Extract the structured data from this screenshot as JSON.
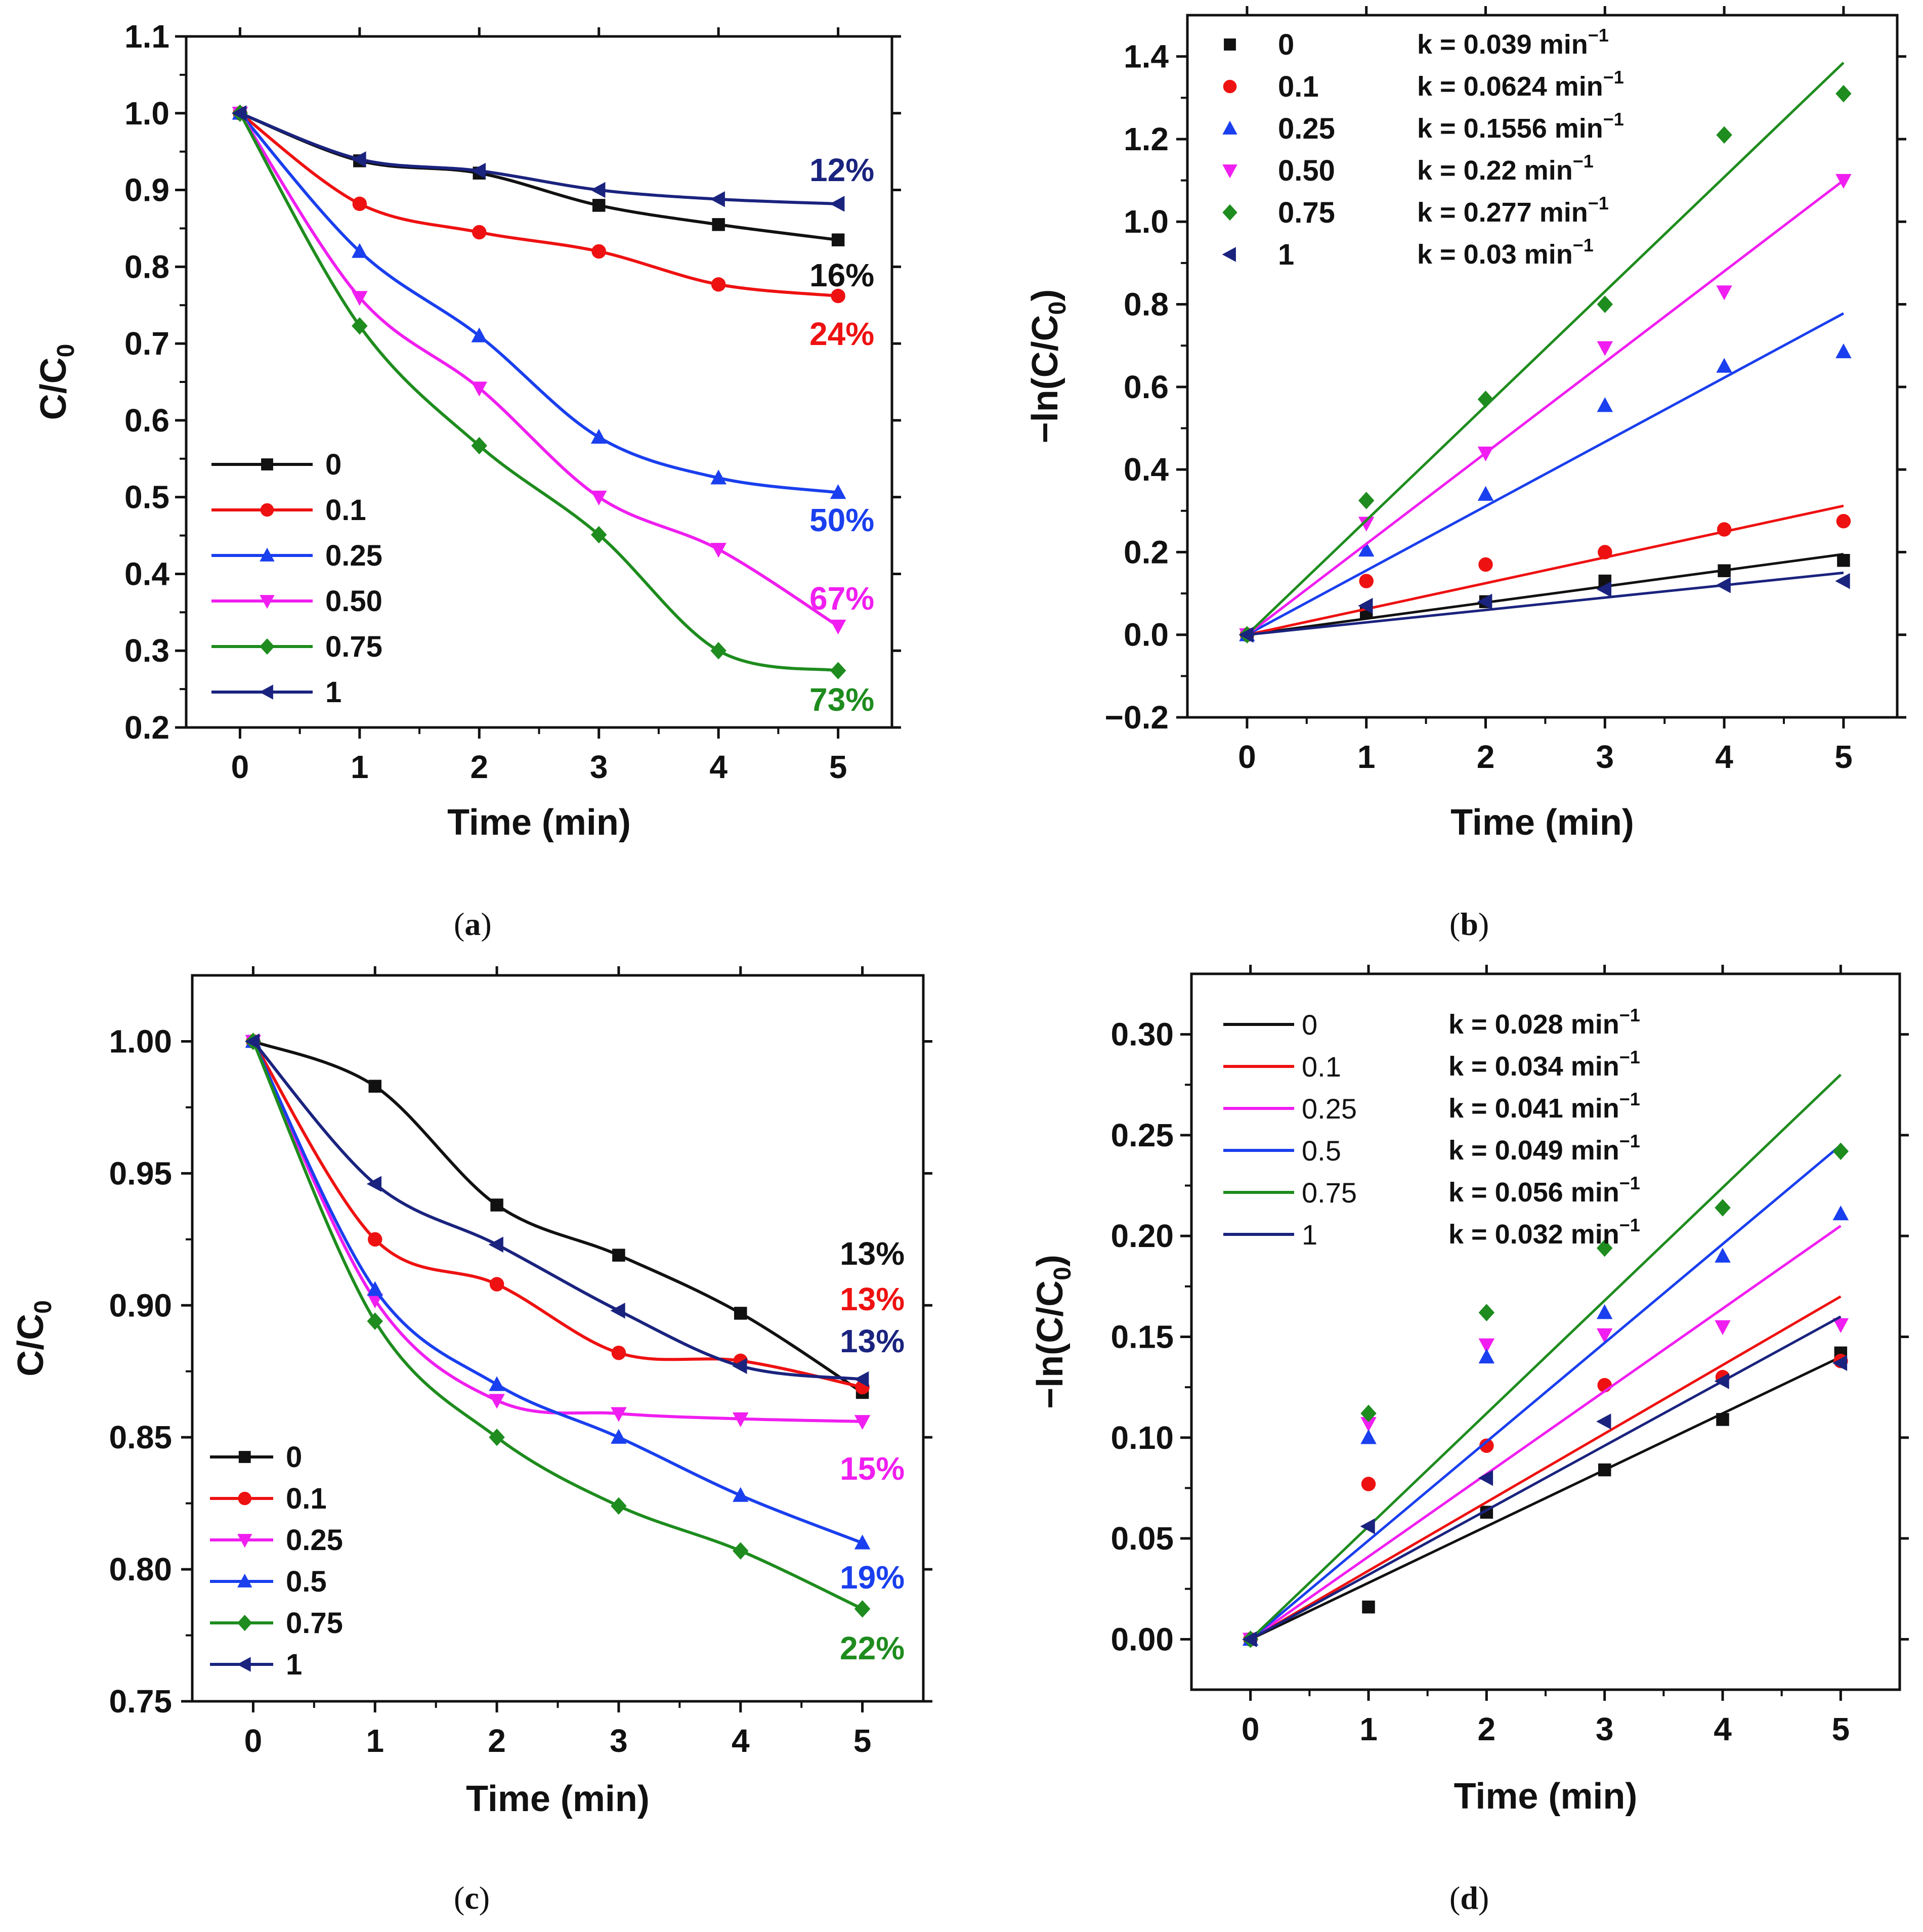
{
  "colors": {
    "s0": "#111111",
    "s01": "#ee1111",
    "s025": "#1a3fee",
    "s050": "#f01ef0",
    "s075": "#1e8c1e",
    "s1": "#1a237e"
  },
  "captions": {
    "a": "a",
    "b": "b",
    "c": "c",
    "d": "d"
  },
  "chart_data": [
    {
      "id": "a",
      "type": "line",
      "xlabel": "Time (min)",
      "ylabel_main": "C/C",
      "ylabel_sub": "0",
      "xlim": [
        -0.45,
        5.45
      ],
      "ylim": [
        0.2,
        1.1
      ],
      "xticks": [
        "0",
        "1",
        "2",
        "3",
        "4",
        "5"
      ],
      "yticks": [
        "0.2",
        "0.3",
        "0.4",
        "0.5",
        "0.6",
        "0.7",
        "0.8",
        "0.9",
        "1.0",
        "1.1"
      ],
      "x": [
        0,
        1,
        2,
        3,
        4,
        5
      ],
      "series": [
        {
          "name": "0",
          "color": "#111111",
          "marker": "square",
          "values": [
            1.0,
            0.938,
            0.922,
            0.88,
            0.855,
            0.835
          ]
        },
        {
          "name": "0.1",
          "color": "#ee1111",
          "marker": "circle",
          "values": [
            1.0,
            0.882,
            0.845,
            0.82,
            0.777,
            0.762
          ]
        },
        {
          "name": "0.25",
          "color": "#1a3fee",
          "marker": "triangle-up",
          "values": [
            1.0,
            0.82,
            0.71,
            0.578,
            0.525,
            0.506
          ]
        },
        {
          "name": "0.50",
          "color": "#f01ef0",
          "marker": "triangle-down",
          "values": [
            1.0,
            0.76,
            0.642,
            0.5,
            0.432,
            0.332
          ]
        },
        {
          "name": "0.75",
          "color": "#1e8c1e",
          "marker": "diamond",
          "values": [
            1.0,
            0.723,
            0.567,
            0.451,
            0.3,
            0.274
          ]
        },
        {
          "name": "1",
          "color": "#1a237e",
          "marker": "triangle-left",
          "values": [
            1.0,
            0.94,
            0.925,
            0.9,
            0.888,
            0.882
          ]
        }
      ],
      "legend": [
        "0",
        "0.1",
        "0.25",
        "0.50",
        "0.75",
        "1"
      ],
      "annotations": [
        {
          "text": "12%",
          "color": "#1a237e"
        },
        {
          "text": "16%",
          "color": "#111111"
        },
        {
          "text": "24%",
          "color": "#ee1111"
        },
        {
          "text": "50%",
          "color": "#1a3fee"
        },
        {
          "text": "67%",
          "color": "#f01ef0"
        },
        {
          "text": "73%",
          "color": "#1e8c1e"
        }
      ]
    },
    {
      "id": "b",
      "type": "scatter",
      "xlabel": "Time (min)",
      "ylabel_main": "−ln(C/C",
      "ylabel_sub": "0",
      "ylabel_end": ")",
      "xlim": [
        -0.5,
        5.45
      ],
      "ylim": [
        -0.2,
        1.5
      ],
      "xticks": [
        "0",
        "1",
        "2",
        "3",
        "4",
        "5"
      ],
      "yticks": [
        "−0.2",
        "0.0",
        "0.2",
        "0.4",
        "0.6",
        "0.8",
        "1.0",
        "1.2",
        "1.4"
      ],
      "x": [
        0,
        1,
        2,
        3,
        4,
        5
      ],
      "series": [
        {
          "name": "0",
          "color": "#111111",
          "marker": "square",
          "k": 0.039,
          "values": [
            0,
            0.055,
            0.08,
            0.13,
            0.155,
            0.18
          ]
        },
        {
          "name": "0.1",
          "color": "#ee1111",
          "marker": "circle",
          "k": 0.0624,
          "values": [
            0,
            0.13,
            0.17,
            0.2,
            0.255,
            0.275
          ]
        },
        {
          "name": "0.25",
          "color": "#1a3fee",
          "marker": "triangle-up",
          "k": 0.1556,
          "values": [
            0,
            0.205,
            0.34,
            0.555,
            0.65,
            0.685
          ]
        },
        {
          "name": "0.50",
          "color": "#f01ef0",
          "marker": "triangle-down",
          "k": 0.22,
          "values": [
            0,
            0.27,
            0.44,
            0.695,
            0.83,
            1.1
          ]
        },
        {
          "name": "0.75",
          "color": "#1e8c1e",
          "marker": "diamond",
          "k": 0.277,
          "values": [
            0,
            0.325,
            0.57,
            0.8,
            1.21,
            1.31
          ]
        },
        {
          "name": "1",
          "color": "#1a237e",
          "marker": "triangle-left",
          "k": 0.03,
          "values": [
            0,
            0.07,
            0.08,
            0.11,
            0.12,
            0.13
          ]
        }
      ],
      "legend": [
        {
          "label": "0",
          "k": "k = 0.039 min"
        },
        {
          "label": "0.1",
          "k": "k = 0.0624 min"
        },
        {
          "label": "0.25",
          "k": "k = 0.1556 min"
        },
        {
          "label": "0.50",
          "k": "k = 0.22 min"
        },
        {
          "label": "0.75",
          "k": "k = 0.277 min"
        },
        {
          "label": "1",
          "k": "k = 0.03 min"
        }
      ],
      "k_sup": "−1"
    },
    {
      "id": "c",
      "type": "line",
      "xlabel": "Time (min)",
      "ylabel_main": "C/C",
      "ylabel_sub": "0",
      "xlim": [
        -0.5,
        5.5
      ],
      "ylim": [
        0.75,
        1.025
      ],
      "xticks": [
        "0",
        "1",
        "2",
        "3",
        "4",
        "5"
      ],
      "yticks": [
        "0.75",
        "0.80",
        "0.85",
        "0.90",
        "0.95",
        "1.00"
      ],
      "x": [
        0,
        1,
        2,
        3,
        4,
        5
      ],
      "series": [
        {
          "name": "0",
          "color": "#111111",
          "marker": "square",
          "values": [
            1.0,
            0.983,
            0.938,
            0.919,
            0.897,
            0.867
          ]
        },
        {
          "name": "0.1",
          "color": "#ee1111",
          "marker": "circle",
          "values": [
            1.0,
            0.925,
            0.908,
            0.882,
            0.879,
            0.869
          ]
        },
        {
          "name": "0.25",
          "color": "#f01ef0",
          "marker": "triangle-down",
          "values": [
            1.0,
            0.902,
            0.864,
            0.859,
            0.857,
            0.856
          ]
        },
        {
          "name": "0.5",
          "color": "#1a3fee",
          "marker": "triangle-up",
          "values": [
            1.0,
            0.906,
            0.87,
            0.85,
            0.828,
            0.81
          ]
        },
        {
          "name": "0.75",
          "color": "#1e8c1e",
          "marker": "diamond",
          "values": [
            1.0,
            0.894,
            0.85,
            0.824,
            0.807,
            0.785
          ]
        },
        {
          "name": "1",
          "color": "#1a237e",
          "marker": "triangle-left",
          "values": [
            1.0,
            0.946,
            0.923,
            0.898,
            0.877,
            0.872
          ]
        }
      ],
      "legend": [
        "0",
        "0.1",
        "0.25",
        "0.5",
        "0.75",
        "1"
      ],
      "annotations": [
        {
          "text": "13%",
          "color": "#111111"
        },
        {
          "text": "13%",
          "color": "#ee1111"
        },
        {
          "text": "13%",
          "color": "#1a237e"
        },
        {
          "text": "15%",
          "color": "#f01ef0"
        },
        {
          "text": "19%",
          "color": "#1a3fee"
        },
        {
          "text": "22%",
          "color": "#1e8c1e"
        }
      ]
    },
    {
      "id": "d",
      "type": "scatter",
      "xlabel": "Time (min)",
      "ylabel_main": "−ln(C/C",
      "ylabel_sub": "0",
      "ylabel_end": ")",
      "xlim": [
        -0.5,
        5.5
      ],
      "ylim": [
        -0.025,
        0.33
      ],
      "xticks": [
        "0",
        "1",
        "2",
        "3",
        "4",
        "5"
      ],
      "yticks": [
        "0.00",
        "0.05",
        "0.10",
        "0.15",
        "0.20",
        "0.25",
        "0.30"
      ],
      "x": [
        0,
        1,
        2,
        3,
        4,
        5
      ],
      "series": [
        {
          "name": "0",
          "color": "#111111",
          "marker": "square",
          "k": 0.028,
          "values": [
            0,
            0.016,
            0.063,
            0.084,
            0.109,
            0.142
          ]
        },
        {
          "name": "0.1",
          "color": "#ee1111",
          "marker": "circle",
          "k": 0.034,
          "values": [
            0,
            0.077,
            0.096,
            0.126,
            0.13,
            0.138
          ]
        },
        {
          "name": "0.25",
          "color": "#f01ef0",
          "marker": "triangle-down",
          "k": 0.041,
          "values": [
            0,
            0.107,
            0.146,
            0.151,
            0.155,
            0.156
          ]
        },
        {
          "name": "0.5",
          "color": "#1a3fee",
          "marker": "triangle-up",
          "k": 0.049,
          "values": [
            0,
            0.1,
            0.14,
            0.162,
            0.19,
            0.211
          ]
        },
        {
          "name": "0.75",
          "color": "#1e8c1e",
          "marker": "diamond",
          "k": 0.056,
          "values": [
            0,
            0.112,
            0.162,
            0.194,
            0.214,
            0.242
          ]
        },
        {
          "name": "1",
          "color": "#1a237e",
          "marker": "triangle-left",
          "k": 0.032,
          "values": [
            0,
            0.056,
            0.08,
            0.108,
            0.128,
            0.137
          ]
        }
      ],
      "legend": [
        {
          "label": "0",
          "k": "k = 0.028 min"
        },
        {
          "label": "0.1",
          "k": "k = 0.034 min"
        },
        {
          "label": "0.25",
          "k": "k = 0.041 min"
        },
        {
          "label": "0.5",
          "k": "k = 0.049 min"
        },
        {
          "label": "0.75",
          "k": "k = 0.056 min"
        },
        {
          "label": "1",
          "k": "k = 0.032 min"
        }
      ],
      "k_sup": "−1"
    }
  ]
}
